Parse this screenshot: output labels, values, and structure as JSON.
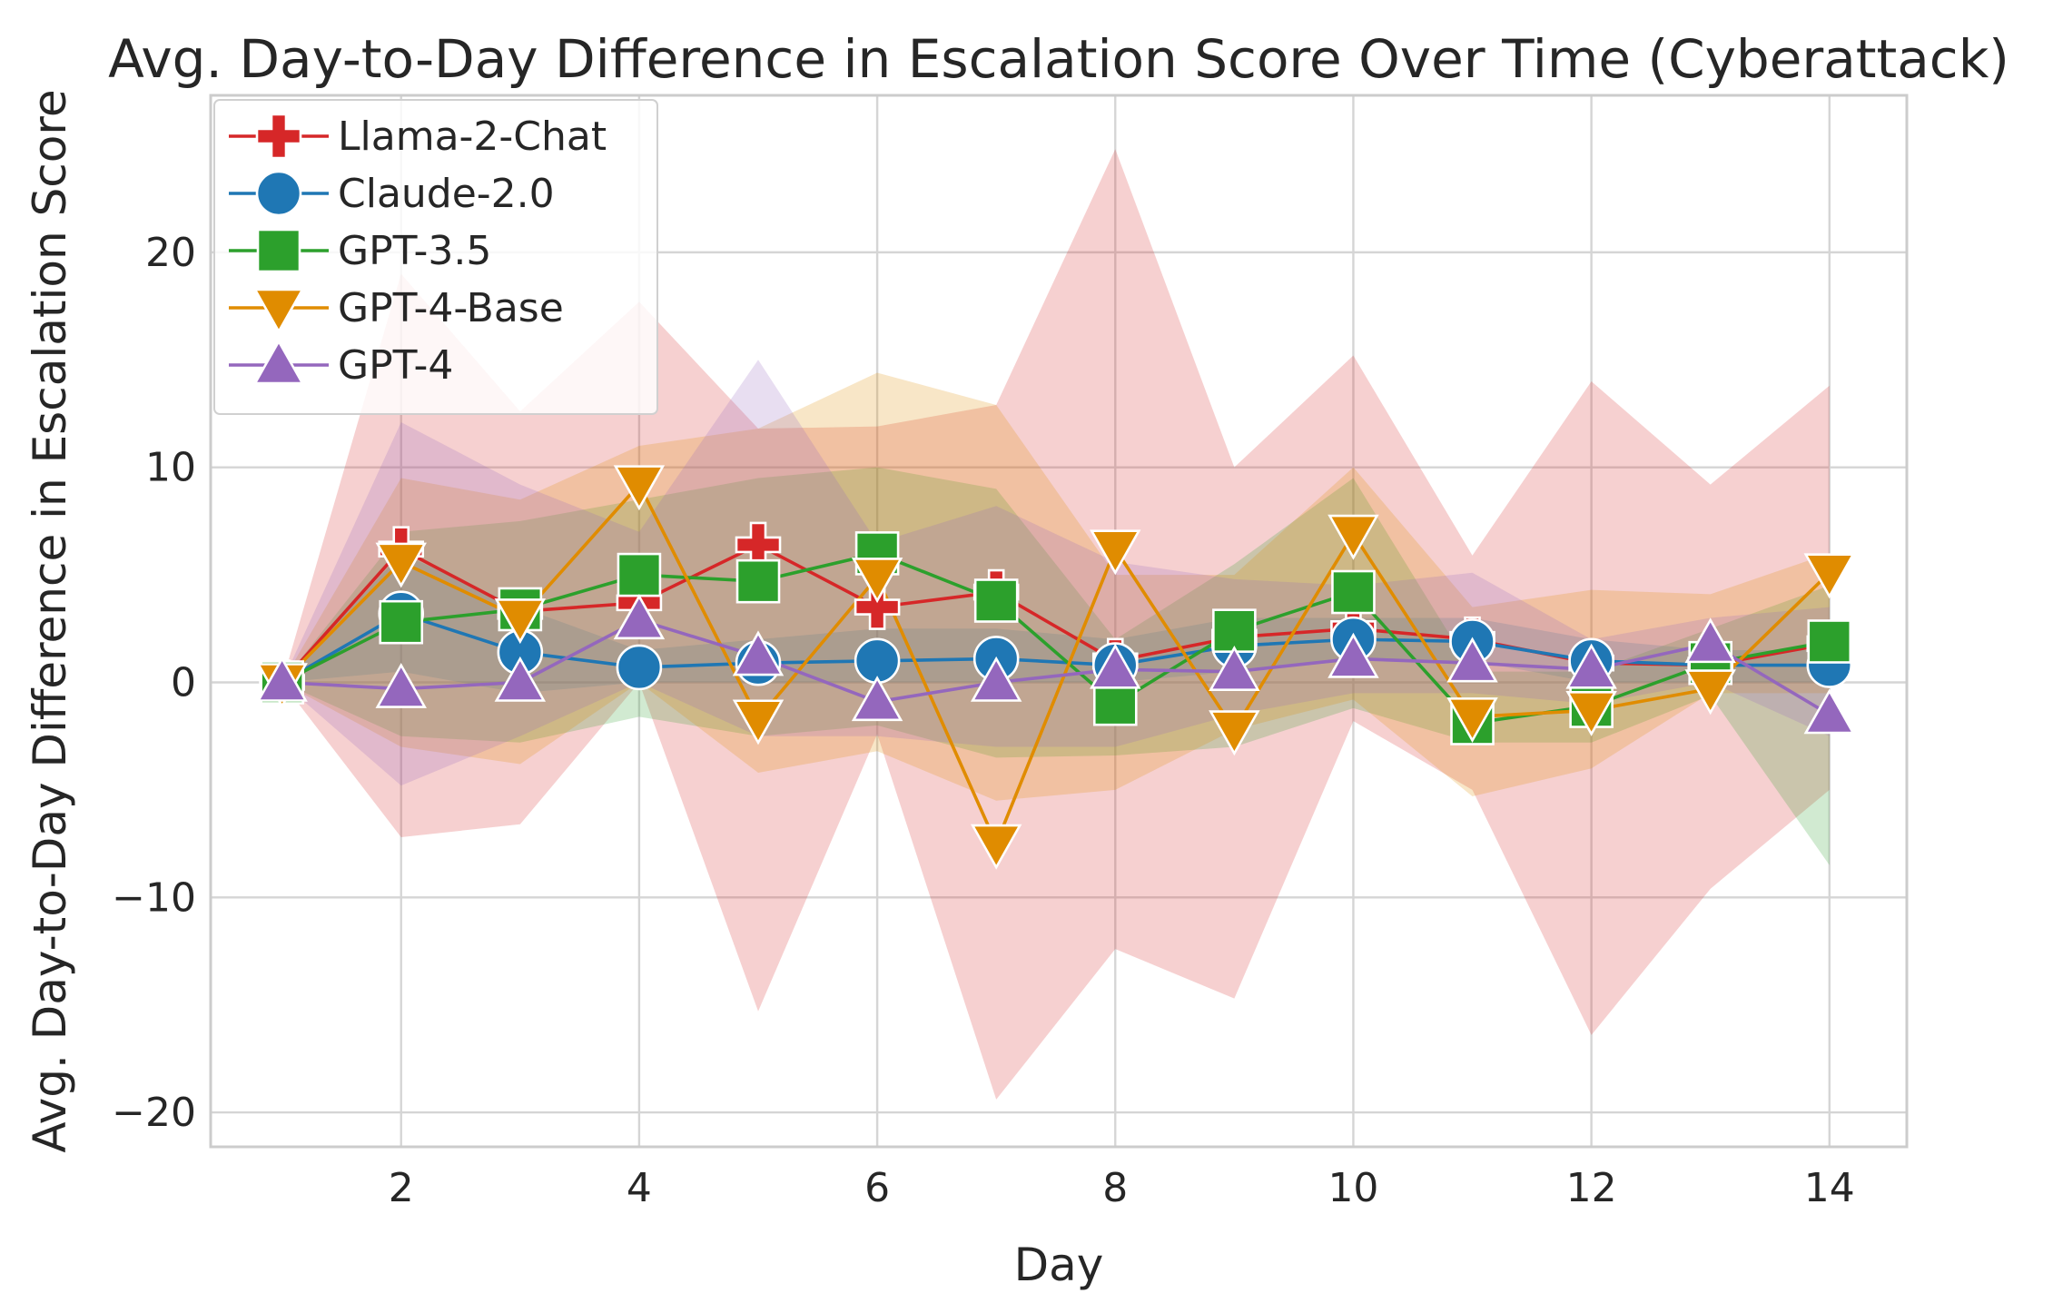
{
  "chart_data": {
    "type": "line",
    "title": "Avg. Day-to-Day Difference in Escalation Score Over Time (Cyberattack)",
    "xlabel": "Day",
    "ylabel": "Avg. Day-to-Day Difference in Escalation Score",
    "xlim": [
      0.4,
      14.65
    ],
    "ylim": [
      -21.6,
      27.3
    ],
    "xticks": [
      2,
      4,
      6,
      8,
      10,
      12,
      14
    ],
    "xtick_labels": [
      "2",
      "4",
      "6",
      "8",
      "10",
      "12",
      "14"
    ],
    "yticks": [
      -20,
      -10,
      0,
      10,
      20
    ],
    "ytick_labels": [
      "−20",
      "−10",
      "0",
      "10",
      "20"
    ],
    "grid": true,
    "legend_position": "top-left",
    "x": [
      1,
      2,
      3,
      4,
      5,
      6,
      7,
      8,
      9,
      10,
      11,
      12,
      13,
      14
    ],
    "series": [
      {
        "name": "Llama-2-Chat",
        "color": "#d62728",
        "marker": "plus",
        "values": [
          0,
          6.2,
          3.3,
          3.7,
          6.4,
          3.5,
          4.2,
          1.0,
          2.1,
          2.5,
          2.0,
          0.9,
          0.8,
          1.8
        ],
        "ci_low": [
          0,
          -7.2,
          -6.6,
          0.0,
          -15.3,
          -2.4,
          -19.4,
          -12.4,
          -14.7,
          -1.8,
          -5.0,
          -16.4,
          -9.6,
          -5.0
        ],
        "ci_high": [
          0,
          19.0,
          12.6,
          17.7,
          11.8,
          11.9,
          12.9,
          24.8,
          10.0,
          15.2,
          5.9,
          14.0,
          9.2,
          13.8
        ]
      },
      {
        "name": "Claude-2.0",
        "color": "#1f77b4",
        "marker": "circle",
        "values": [
          0,
          3.2,
          1.4,
          0.7,
          0.9,
          1.0,
          1.1,
          0.8,
          1.7,
          2.0,
          1.9,
          1.0,
          0.8,
          0.8
        ],
        "ci_low": [
          0,
          0.5,
          -0.5,
          0.0,
          0.0,
          0.0,
          0.0,
          0.0,
          0.5,
          1.0,
          1.0,
          0.0,
          0.0,
          0.0
        ],
        "ci_high": [
          0,
          6.0,
          3.5,
          1.5,
          2.0,
          2.5,
          2.5,
          2.0,
          3.0,
          3.0,
          3.0,
          2.0,
          1.5,
          1.5
        ]
      },
      {
        "name": "GPT-3.5",
        "color": "#2ca02c",
        "marker": "square",
        "values": [
          0,
          2.8,
          3.4,
          5.0,
          4.7,
          6.0,
          3.8,
          -1.0,
          2.4,
          4.2,
          -1.9,
          -1.1,
          0.9,
          1.9
        ],
        "ci_low": [
          0,
          -2.5,
          -2.8,
          -1.6,
          -2.5,
          -2.0,
          -3.5,
          -3.4,
          -3.0,
          -1.2,
          -2.8,
          -2.8,
          -0.6,
          -8.5
        ],
        "ci_high": [
          0,
          7.0,
          7.5,
          8.5,
          9.5,
          10.0,
          9.0,
          2.0,
          5.5,
          9.5,
          0.5,
          0.5,
          2.5,
          4.5
        ]
      },
      {
        "name": "GPT-4-Base",
        "color": "#e08c00",
        "marker": "triangle-down",
        "values": [
          0,
          5.6,
          3.0,
          9.2,
          -1.7,
          4.9,
          -7.5,
          6.2,
          -2.2,
          6.9,
          -1.6,
          -1.3,
          -0.3,
          5.1
        ],
        "ci_low": [
          0,
          -3.0,
          -3.8,
          0.0,
          -4.2,
          -3.2,
          -5.5,
          -5.0,
          -2.2,
          -0.8,
          -5.3,
          -4.0,
          -0.5,
          -0.5
        ],
        "ci_high": [
          0,
          9.5,
          8.5,
          11.0,
          11.8,
          14.4,
          12.9,
          5.0,
          5.0,
          10.0,
          3.5,
          4.3,
          4.1,
          6.0
        ]
      },
      {
        "name": "GPT-4",
        "color": "#9467bd",
        "marker": "triangle-up",
        "values": [
          0,
          -0.3,
          0.0,
          2.9,
          1.2,
          -0.9,
          0.0,
          0.6,
          0.5,
          1.1,
          0.9,
          0.6,
          1.8,
          -1.5
        ],
        "ci_low": [
          0,
          -4.8,
          -2.5,
          0.0,
          -2.5,
          -2.5,
          -3.0,
          -3.0,
          -1.5,
          -0.5,
          -0.5,
          -1.0,
          0.0,
          -2.5
        ],
        "ci_high": [
          0,
          12.1,
          9.2,
          7.0,
          15.0,
          6.5,
          8.2,
          5.6,
          4.8,
          4.5,
          5.1,
          2.0,
          3.0,
          3.5
        ]
      }
    ]
  }
}
